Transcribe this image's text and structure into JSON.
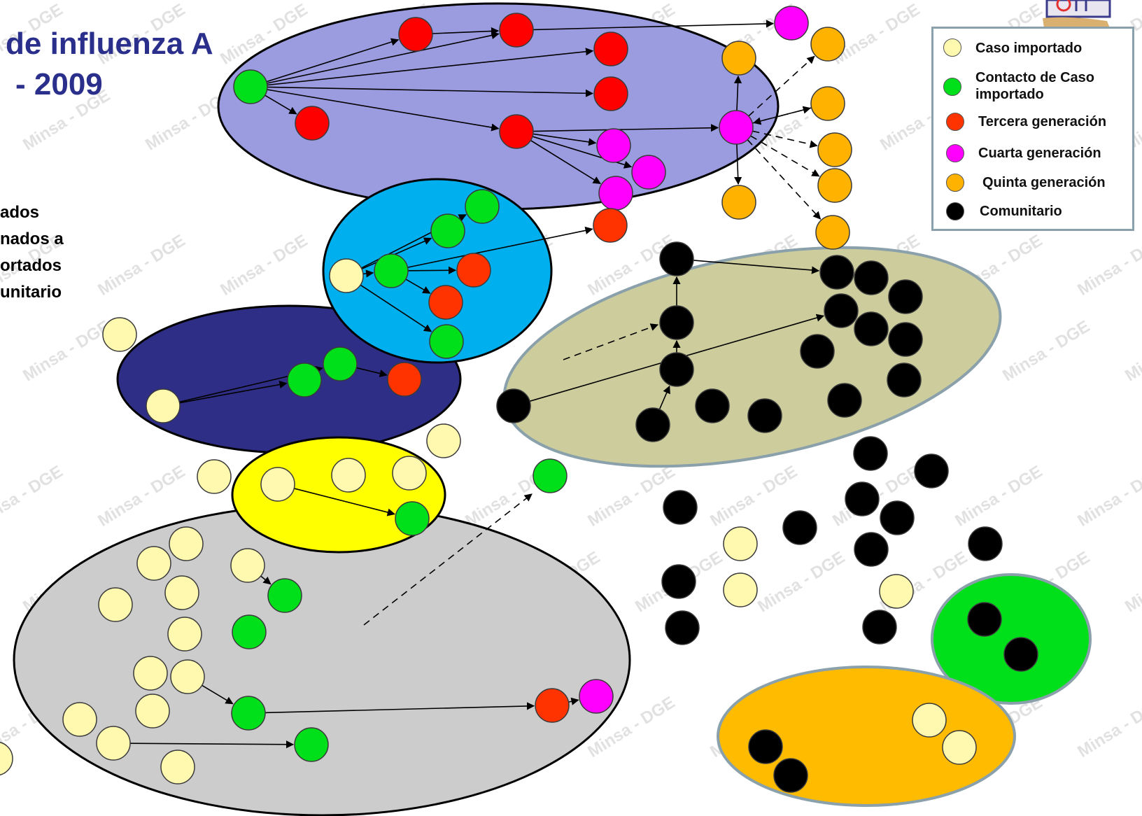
{
  "title": {
    "line1": "de influenza A",
    "line2": "- 2009"
  },
  "side_text": [
    "ados",
    "nados a",
    "ortados",
    "unitario"
  ],
  "watermark": "Minsa - DGE",
  "legend": {
    "items": [
      {
        "label": "Caso importado",
        "color": "#fff9b0"
      },
      {
        "label": "Contacto de Caso importado",
        "color": "#00e01a"
      },
      {
        "label": "Tercera generación",
        "color": "#ff3300"
      },
      {
        "label": "Cuarta generación",
        "color": "#ff00ff"
      },
      {
        "label": "Quinta generación",
        "color": "#ffb300"
      },
      {
        "label": "Comunitario",
        "color": "#000000"
      }
    ]
  },
  "colors": {
    "imported": "#fff9b0",
    "contact": "#00e01a",
    "third": "#ff0000",
    "third_alt": "#ff3300",
    "fourth": "#ff00ff",
    "fifth": "#ffb300",
    "community": "#000000",
    "cluster_purple": "#9b9be0",
    "cluster_cyan": "#00b0ee",
    "cluster_navy": "#2e2e86",
    "cluster_yellow": "#ffff00",
    "cluster_gray": "#cccccc",
    "cluster_khaki": "#cccc9c",
    "cluster_green": "#00e01a",
    "cluster_orange": "#ffbb00"
  }
}
